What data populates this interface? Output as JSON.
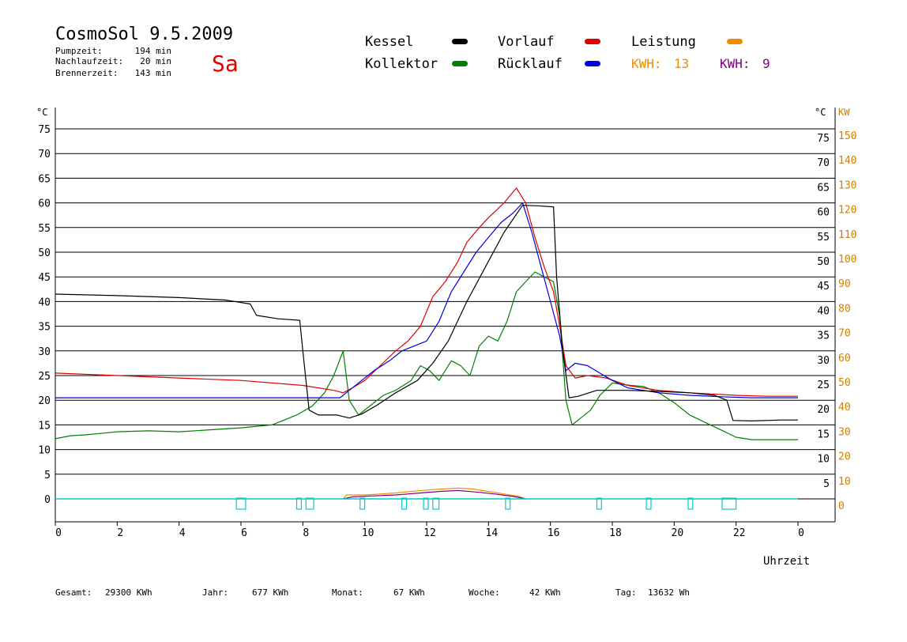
{
  "header": {
    "title": "CosmoSol 9.5.2009",
    "day": "Sa",
    "stats": [
      {
        "label": "Pumpzeit:",
        "value": "194 min"
      },
      {
        "label": "Nachlaufzeit:",
        "value": "20 min"
      },
      {
        "label": "Brennerzeit:",
        "value": "143 min"
      }
    ]
  },
  "legend": [
    {
      "name": "Kessel",
      "color": "#000000"
    },
    {
      "name": "Vorlauf",
      "color": "#e00000"
    },
    {
      "name": "Leistung",
      "color": "#f08c00"
    },
    {
      "name": "Kollektor",
      "color": "#008000"
    },
    {
      "name": "Rücklauf",
      "color": "#0000e0"
    }
  ],
  "kwh": [
    {
      "label": "KWH:",
      "value": "13",
      "color": "#f08c00"
    },
    {
      "label": "KWH:",
      "value": "9",
      "color": "#800080"
    }
  ],
  "footer": [
    {
      "label": "Gesamt:",
      "value": "29300 KWh"
    },
    {
      "label": "Jahr:",
      "value": "677 KWh"
    },
    {
      "label": "Monat:",
      "value": "67 KWh"
    },
    {
      "label": "Woche:",
      "value": "42 KWh"
    },
    {
      "label": "Tag:",
      "value": "13632 Wh"
    }
  ],
  "chart_data": {
    "type": "line",
    "xlabel": "Uhrzeit",
    "ylabel_left": "°C",
    "ylabel_right_temp": "°C",
    "ylabel_right_power": "KW",
    "xlim": [
      0,
      24
    ],
    "ylim": [
      0,
      75
    ],
    "grid": true,
    "x_ticks": [
      "0",
      "2",
      "4",
      "6",
      "8",
      "10",
      "12",
      "14",
      "16",
      "18",
      "20",
      "22",
      "0"
    ],
    "y_ticks_left": [
      "0",
      "5",
      "10",
      "15",
      "20",
      "25",
      "30",
      "35",
      "40",
      "45",
      "50",
      "55",
      "60",
      "65",
      "70",
      "75"
    ],
    "y_ticks_right": [
      "5",
      "10",
      "15",
      "20",
      "25",
      "30",
      "35",
      "40",
      "45",
      "50",
      "55",
      "60",
      "65",
      "70",
      "75"
    ],
    "y_ticks_power": [
      "0",
      "10",
      "20",
      "30",
      "40",
      "50",
      "60",
      "70",
      "80",
      "90",
      "100",
      "110",
      "120",
      "130",
      "140",
      "150"
    ],
    "series": [
      {
        "name": "Kessel",
        "color": "#000000",
        "points": [
          [
            0,
            41.5
          ],
          [
            2,
            41.2
          ],
          [
            4,
            40.8
          ],
          [
            5.5,
            40.3
          ],
          [
            6.3,
            39.5
          ],
          [
            6.5,
            37.2
          ],
          [
            7.2,
            36.5
          ],
          [
            7.9,
            36.2
          ],
          [
            8,
            30
          ],
          [
            8.2,
            18
          ],
          [
            8.5,
            17
          ],
          [
            9.1,
            17
          ],
          [
            9.5,
            16.4
          ],
          [
            9.9,
            17.2
          ],
          [
            10.4,
            19
          ],
          [
            11,
            21.5
          ],
          [
            11.7,
            24
          ],
          [
            12.2,
            27.5
          ],
          [
            12.7,
            32
          ],
          [
            13.3,
            40
          ],
          [
            13.9,
            47
          ],
          [
            14.5,
            54
          ],
          [
            15.1,
            59.5
          ],
          [
            15.6,
            59.4
          ],
          [
            16.1,
            59.2
          ],
          [
            16.2,
            45
          ],
          [
            16.4,
            30
          ],
          [
            16.6,
            20.5
          ],
          [
            16.9,
            20.8
          ],
          [
            17.5,
            22
          ],
          [
            18.5,
            22
          ],
          [
            19.5,
            21.8
          ],
          [
            20.5,
            21.5
          ],
          [
            21.3,
            21
          ],
          [
            21.7,
            20
          ],
          [
            21.9,
            15.9
          ],
          [
            22.5,
            15.8
          ],
          [
            23.5,
            16
          ],
          [
            24,
            16
          ]
        ]
      },
      {
        "name": "Vorlauf",
        "color": "#e00000",
        "points": [
          [
            0,
            25.5
          ],
          [
            2,
            25
          ],
          [
            4,
            24.5
          ],
          [
            6,
            24
          ],
          [
            8,
            23
          ],
          [
            9,
            22
          ],
          [
            9.3,
            21.5
          ],
          [
            9.6,
            22.5
          ],
          [
            10,
            24
          ],
          [
            10.5,
            27
          ],
          [
            11,
            30
          ],
          [
            11.4,
            32
          ],
          [
            11.8,
            35
          ],
          [
            12,
            38
          ],
          [
            12.2,
            41
          ],
          [
            12.6,
            44
          ],
          [
            13,
            48
          ],
          [
            13.3,
            52
          ],
          [
            13.7,
            55
          ],
          [
            14,
            57
          ],
          [
            14.5,
            60
          ],
          [
            14.9,
            63
          ],
          [
            15.2,
            60
          ],
          [
            15.5,
            53
          ],
          [
            15.8,
            47
          ],
          [
            16.1,
            42
          ],
          [
            16.3,
            35
          ],
          [
            16.5,
            27
          ],
          [
            16.8,
            24.5
          ],
          [
            17.2,
            25
          ],
          [
            17.8,
            24.5
          ],
          [
            18.5,
            23
          ],
          [
            19.5,
            22
          ],
          [
            20.5,
            21.5
          ],
          [
            22,
            21
          ],
          [
            23,
            20.8
          ],
          [
            24,
            20.8
          ]
        ]
      },
      {
        "name": "Rücklauf",
        "color": "#0000e0",
        "points": [
          [
            0,
            20.5
          ],
          [
            4,
            20.5
          ],
          [
            8,
            20.5
          ],
          [
            9.2,
            20.5
          ],
          [
            9.5,
            22
          ],
          [
            9.9,
            24
          ],
          [
            10.3,
            26
          ],
          [
            10.8,
            28
          ],
          [
            11.2,
            30
          ],
          [
            11.6,
            31
          ],
          [
            12,
            32
          ],
          [
            12.4,
            36
          ],
          [
            12.8,
            42
          ],
          [
            13.2,
            46
          ],
          [
            13.6,
            50
          ],
          [
            14,
            53
          ],
          [
            14.4,
            56
          ],
          [
            14.8,
            58
          ],
          [
            15.1,
            60
          ],
          [
            15.4,
            54
          ],
          [
            15.7,
            47
          ],
          [
            16,
            40
          ],
          [
            16.3,
            33
          ],
          [
            16.5,
            26
          ],
          [
            16.8,
            27.5
          ],
          [
            17.2,
            27
          ],
          [
            17.6,
            25.5
          ],
          [
            18,
            24
          ],
          [
            18.5,
            22.5
          ],
          [
            19.5,
            21.5
          ],
          [
            20.5,
            21
          ],
          [
            21.5,
            20.7
          ],
          [
            22.5,
            20.5
          ],
          [
            24,
            20.5
          ]
        ]
      },
      {
        "name": "Kollektor",
        "color": "#008000",
        "points": [
          [
            0,
            12.2
          ],
          [
            0.5,
            12.8
          ],
          [
            1,
            13
          ],
          [
            2,
            13.6
          ],
          [
            3,
            13.8
          ],
          [
            4,
            13.6
          ],
          [
            5,
            14
          ],
          [
            6,
            14.4
          ],
          [
            7,
            15
          ],
          [
            7.4,
            16
          ],
          [
            7.8,
            17
          ],
          [
            8.3,
            18.8
          ],
          [
            8.7,
            21.5
          ],
          [
            9,
            25
          ],
          [
            9.3,
            30
          ],
          [
            9.5,
            20
          ],
          [
            9.8,
            17
          ],
          [
            10.2,
            19
          ],
          [
            10.6,
            21
          ],
          [
            11,
            22
          ],
          [
            11.5,
            24
          ],
          [
            11.8,
            27
          ],
          [
            12.1,
            26
          ],
          [
            12.4,
            24
          ],
          [
            12.8,
            28
          ],
          [
            13.1,
            27
          ],
          [
            13.4,
            25
          ],
          [
            13.7,
            31
          ],
          [
            14,
            33
          ],
          [
            14.3,
            32
          ],
          [
            14.6,
            36
          ],
          [
            14.9,
            42
          ],
          [
            15.2,
            44
          ],
          [
            15.5,
            46
          ],
          [
            15.8,
            45
          ],
          [
            16.1,
            44
          ],
          [
            16.3,
            37
          ],
          [
            16.5,
            20
          ],
          [
            16.7,
            15
          ],
          [
            16.9,
            16
          ],
          [
            17.3,
            18
          ],
          [
            17.6,
            21
          ],
          [
            18,
            23.5
          ],
          [
            18.6,
            23
          ],
          [
            19,
            22.8
          ],
          [
            19.5,
            21.5
          ],
          [
            20,
            19.5
          ],
          [
            20.5,
            17
          ],
          [
            21,
            15.5
          ],
          [
            21.5,
            14
          ],
          [
            22,
            12.5
          ],
          [
            22.5,
            12
          ],
          [
            23,
            12
          ],
          [
            24,
            12
          ]
        ]
      },
      {
        "name": "Leistung",
        "color": "#f08c00",
        "points": [
          [
            9.3,
            0
          ],
          [
            9.4,
            0.8
          ],
          [
            10,
            0.8
          ],
          [
            10.5,
            1
          ],
          [
            11,
            1.2
          ],
          [
            11.5,
            1.5
          ],
          [
            12,
            1.8
          ],
          [
            12.5,
            2
          ],
          [
            13,
            2.2
          ],
          [
            13.5,
            2
          ],
          [
            14,
            1.5
          ],
          [
            14.5,
            1
          ],
          [
            15,
            0.5
          ],
          [
            15.2,
            0
          ]
        ]
      },
      {
        "name": "KWH 9",
        "color": "#800080",
        "points": [
          [
            9.3,
            0
          ],
          [
            9.6,
            0.4
          ],
          [
            10.2,
            0.6
          ],
          [
            11,
            0.8
          ],
          [
            11.8,
            1.2
          ],
          [
            12.4,
            1.5
          ],
          [
            13,
            1.7
          ],
          [
            13.6,
            1.4
          ],
          [
            14.2,
            1
          ],
          [
            14.8,
            0.5
          ],
          [
            15.2,
            0
          ]
        ]
      }
    ],
    "pump_intervals": [
      [
        5.85,
        6.15
      ],
      [
        7.8,
        7.95
      ],
      [
        8.1,
        8.35
      ],
      [
        9.85,
        10
      ],
      [
        11.2,
        11.35
      ],
      [
        11.9,
        12.05
      ],
      [
        12.2,
        12.4
      ],
      [
        14.55,
        14.7
      ],
      [
        17.5,
        17.65
      ],
      [
        19.1,
        19.25
      ],
      [
        20.45,
        20.6
      ],
      [
        21.55,
        22
      ]
    ]
  }
}
